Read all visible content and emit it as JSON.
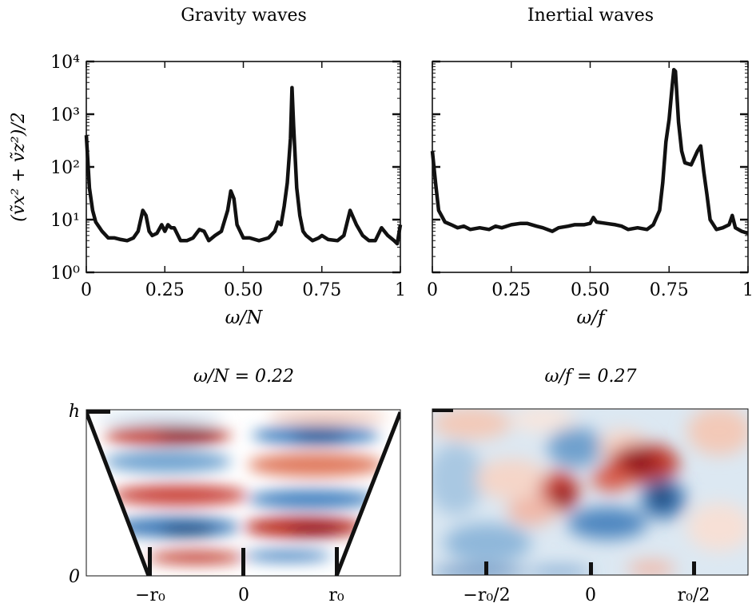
{
  "chart_data": [
    {
      "type": "line",
      "title": "Gravity waves",
      "xlabel": "ω/N",
      "ylabel": "(ṽx² + ṽz²)/2",
      "yscale": "log",
      "xlim": [
        0,
        1
      ],
      "ylim": [
        1,
        10000
      ],
      "xticks": [
        "0",
        "0.25",
        "0.50",
        "0.75",
        "1"
      ],
      "xtick_values": [
        0,
        0.25,
        0.5,
        0.75,
        1
      ],
      "yticks": [
        "10⁰",
        "10¹",
        "10²",
        "10³",
        "10⁴"
      ],
      "ytick_values": [
        1,
        10,
        100,
        1000,
        10000
      ],
      "color": "#111111",
      "x": [
        0.0,
        0.01,
        0.02,
        0.03,
        0.05,
        0.07,
        0.09,
        0.11,
        0.13,
        0.15,
        0.165,
        0.18,
        0.19,
        0.2,
        0.21,
        0.225,
        0.24,
        0.25,
        0.26,
        0.27,
        0.28,
        0.3,
        0.32,
        0.34,
        0.36,
        0.375,
        0.39,
        0.41,
        0.43,
        0.45,
        0.46,
        0.47,
        0.48,
        0.5,
        0.52,
        0.55,
        0.58,
        0.6,
        0.61,
        0.62,
        0.63,
        0.64,
        0.65,
        0.655,
        0.66,
        0.67,
        0.68,
        0.69,
        0.7,
        0.72,
        0.74,
        0.75,
        0.77,
        0.8,
        0.82,
        0.84,
        0.86,
        0.88,
        0.9,
        0.92,
        0.94,
        0.96,
        0.98,
        0.99,
        1.0
      ],
      "y": [
        400,
        40,
        15,
        9,
        6,
        4.5,
        4.5,
        4.2,
        4.0,
        4.5,
        6,
        15,
        12,
        6,
        5,
        5.5,
        8,
        6,
        8,
        7,
        7,
        4,
        4,
        4.5,
        6.5,
        6,
        4,
        5,
        6,
        15,
        35,
        25,
        8,
        4.5,
        4.5,
        4,
        4.5,
        6,
        9,
        8,
        18,
        50,
        350,
        3200,
        600,
        40,
        12,
        6,
        5,
        4,
        4.5,
        5,
        4.2,
        4,
        5,
        15,
        8,
        5,
        4,
        4,
        7,
        5,
        4,
        3.5,
        8
      ]
    },
    {
      "type": "line",
      "title": "Inertial waves",
      "xlabel": "ω/f",
      "yscale": "log",
      "xlim": [
        0,
        1
      ],
      "ylim": [
        1,
        10000
      ],
      "xticks": [
        "0",
        "0.25",
        "0.50",
        "0.75",
        "1"
      ],
      "xtick_values": [
        0,
        0.25,
        0.5,
        0.75,
        1
      ],
      "color": "#111111",
      "x": [
        0.0,
        0.01,
        0.02,
        0.04,
        0.06,
        0.08,
        0.1,
        0.12,
        0.15,
        0.18,
        0.2,
        0.22,
        0.25,
        0.28,
        0.3,
        0.33,
        0.35,
        0.38,
        0.4,
        0.43,
        0.45,
        0.48,
        0.5,
        0.51,
        0.52,
        0.55,
        0.58,
        0.6,
        0.62,
        0.65,
        0.68,
        0.7,
        0.72,
        0.73,
        0.74,
        0.75,
        0.76,
        0.765,
        0.77,
        0.78,
        0.79,
        0.8,
        0.82,
        0.84,
        0.85,
        0.86,
        0.87,
        0.88,
        0.9,
        0.92,
        0.94,
        0.95,
        0.96,
        0.98,
        1.0
      ],
      "y": [
        200,
        50,
        15,
        9,
        8,
        7,
        7.5,
        6.5,
        7,
        6.5,
        7.5,
        7,
        8,
        8.5,
        8.5,
        7.5,
        7,
        6,
        7,
        7.5,
        8,
        8,
        8.5,
        11,
        9,
        8.5,
        8,
        7.5,
        6.5,
        7,
        6.5,
        8,
        15,
        50,
        300,
        800,
        3500,
        7000,
        6500,
        700,
        200,
        120,
        110,
        200,
        250,
        80,
        30,
        10,
        6.5,
        7,
        8,
        12,
        7,
        6,
        5.5
      ]
    },
    {
      "type": "heatmap",
      "title": "ω/N = 0.22",
      "yticks": [
        "h",
        "0"
      ],
      "xticks": [
        "−r₀",
        "0",
        "r₀"
      ],
      "colormap": [
        "#2166ac",
        "#ffffff",
        "#b2182b"
      ]
    },
    {
      "type": "heatmap",
      "title": "ω/f = 0.27",
      "xticks": [
        "−r₀/2",
        "0",
        "r₀/2"
      ],
      "colormap": [
        "#2166ac",
        "#ffffff",
        "#b2182b"
      ]
    }
  ]
}
